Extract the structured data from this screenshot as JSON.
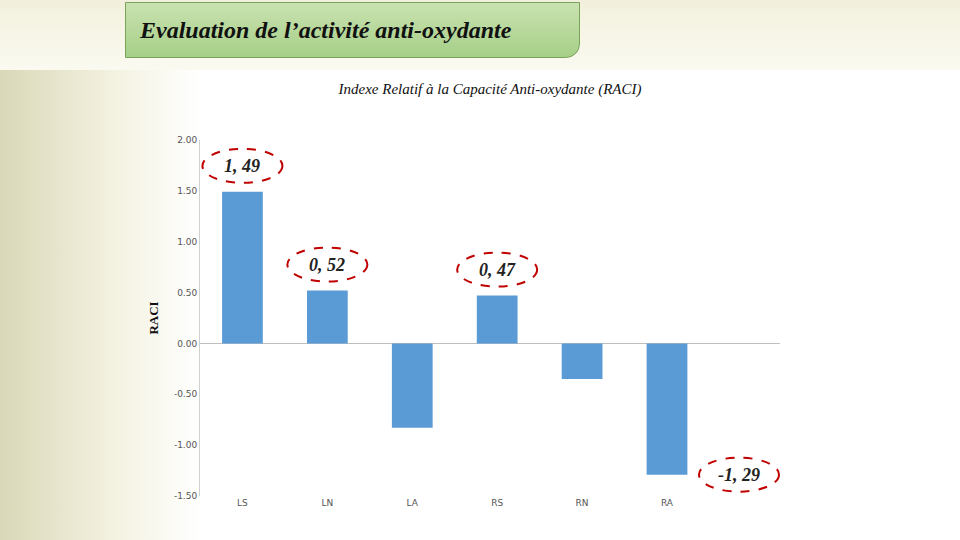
{
  "chart_data": {
    "type": "bar",
    "title": "Evaluation de l’activité anti-oxydante",
    "subtitle": "Indexe Relatif à la Capacité Anti-oxydante (RACI)",
    "y_label": "RACI",
    "categories": [
      "LS",
      "LN",
      "LA",
      "RS",
      "RN",
      "RA"
    ],
    "values": [
      1.49,
      0.52,
      -0.83,
      0.47,
      -0.35,
      -1.29
    ],
    "color": "#5b9bd5",
    "ylim": [
      -1.5,
      2
    ],
    "yticks": [
      {
        "value": -1.5,
        "label": "-1.50"
      },
      {
        "value": -1,
        "label": "-1.00"
      },
      {
        "value": -0.5,
        "label": "-0.50"
      },
      {
        "value": 0,
        "label": "0.00"
      },
      {
        "value": 0.5,
        "label": "0.50"
      },
      {
        "value": 1,
        "label": "1.00"
      },
      {
        "value": 1.5,
        "label": "1.50"
      },
      {
        "value": 2,
        "label": "2.00"
      }
    ],
    "grid": false,
    "annotations": [
      {
        "category": "LS",
        "value": 1.49,
        "text": "1, 49"
      },
      {
        "category": "LN",
        "value": 0.52,
        "text": "0, 52"
      },
      {
        "category": "RS",
        "value": 0.47,
        "text": "0, 47"
      },
      {
        "category": "RA",
        "value": -1.29,
        "text": "-1, 29"
      }
    ]
  }
}
